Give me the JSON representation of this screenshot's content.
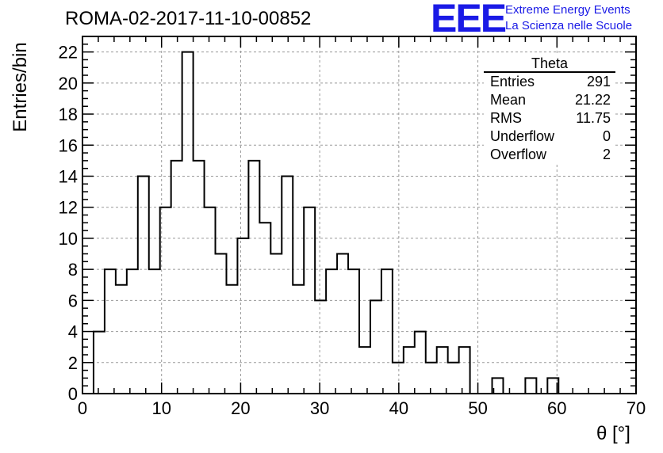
{
  "title": "ROMA-02-2017-11-10-00852",
  "logo": {
    "mark": "EEE",
    "line1": "Extreme Energy Events",
    "line2": "La Scienza nelle Scuole",
    "color": "#1a1ae6"
  },
  "stats_box": {
    "name": "Theta",
    "rows": [
      {
        "label": "Entries",
        "value": "291"
      },
      {
        "label": "Mean",
        "value": "21.22"
      },
      {
        "label": "RMS",
        "value": "11.75"
      },
      {
        "label": "Underflow",
        "value": "0"
      },
      {
        "label": "Overflow",
        "value": "2"
      }
    ]
  },
  "chart_data": {
    "type": "bar",
    "title": "ROMA-02-2017-11-10-00852",
    "xlabel": "θ [°]",
    "ylabel": "Entries/bin",
    "xlim": [
      0,
      70
    ],
    "ylim": [
      0,
      23
    ],
    "bin_edges_start": 0,
    "bin_width": 1.4,
    "values": [
      0,
      4,
      8,
      7,
      8,
      14,
      8,
      12,
      15,
      22,
      15,
      12,
      9,
      7,
      10,
      15,
      11,
      9,
      14,
      7,
      12,
      6,
      8,
      9,
      8,
      3,
      6,
      8,
      2,
      3,
      4,
      2,
      3,
      2,
      3,
      0,
      0,
      1,
      0,
      0,
      1,
      0,
      1,
      0,
      0,
      0,
      0,
      0,
      0,
      0
    ],
    "xticks": [
      0,
      10,
      20,
      30,
      40,
      50,
      60,
      70
    ],
    "yticks": [
      0,
      2,
      4,
      6,
      8,
      10,
      12,
      14,
      16,
      18,
      20,
      22
    ],
    "grid": true,
    "line_color": "#000000"
  }
}
